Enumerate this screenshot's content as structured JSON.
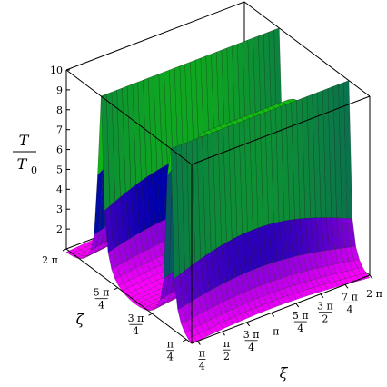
{
  "chart_data": {
    "type": "surface3d",
    "title": "",
    "zlabel": {
      "numerator": "T",
      "denominator": "T",
      "denominator_sub": "0"
    },
    "xlabel": "ξ",
    "ylabel": "ζ",
    "zlim": [
      1,
      10
    ],
    "z_ticks": [
      "2",
      "3",
      "4",
      "5",
      "6",
      "7",
      "8",
      "9",
      "10"
    ],
    "xi_ticks": [
      {
        "num": "π",
        "den": "4"
      },
      {
        "num": "π",
        "den": "2"
      },
      {
        "num": "3 π",
        "den": "4"
      },
      {
        "num": "π",
        "den": ""
      },
      {
        "num": "5 π",
        "den": "4"
      },
      {
        "num": "3 π",
        "den": "2"
      },
      {
        "num": "7 π",
        "den": "4"
      },
      {
        "num": "2 π",
        "den": ""
      }
    ],
    "zeta_ticks": [
      {
        "num": "2 π",
        "den": ""
      },
      {
        "num": "5 π",
        "den": "4"
      },
      {
        "num": "3 π",
        "den": "4"
      },
      {
        "num": "π",
        "den": "4"
      }
    ],
    "xi_range": [
      0.6,
      6.28
    ],
    "zeta_range": [
      0.55,
      6.28
    ],
    "surface_ridges_at_zeta": [
      1.571,
      4.712
    ],
    "surface_min_approx": 1.0,
    "colors": {
      "low": "#ff00ff",
      "mid": "#0000aa",
      "high": "#11bb11",
      "mesh": "#222222"
    },
    "grid": false,
    "box": true
  }
}
